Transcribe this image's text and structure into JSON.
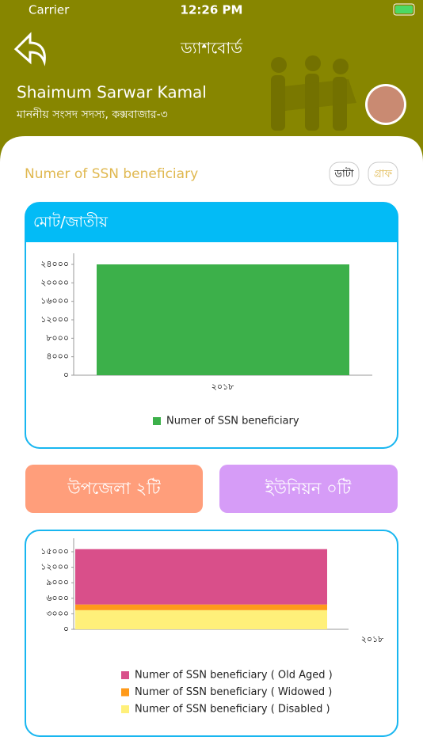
{
  "status_bar": {
    "carrier": "Carrier",
    "time": "12:26 PM"
  },
  "header": {
    "title": "ড্যাশবোর্ড",
    "name": "Shaimum Sarwar Kamal",
    "subtitle": "মাননীয় সংসদ সদস্য, কক্সবাজার-৩"
  },
  "section": {
    "title": "Numer of SSN beneficiary",
    "buttons": [
      "ডাটা",
      "গ্রাফ"
    ]
  },
  "stats": [
    "উপজেলা ২টি",
    "ইউনিয়ন ০টি"
  ],
  "chart_data": [
    {
      "type": "bar",
      "title": "মোট/জাতীয়",
      "categories": [
        "২০১৮"
      ],
      "series": [
        {
          "name": "Numer of SSN beneficiary",
          "color": "#3cb04a",
          "values": [
            24000
          ]
        }
      ],
      "ylim": [
        0,
        26400
      ],
      "yticks": [
        {
          "value": 0,
          "label": "০"
        },
        {
          "value": 4000,
          "label": "৪০০০"
        },
        {
          "value": 8000,
          "label": "৮০০০"
        },
        {
          "value": 12000,
          "label": "১২০০০"
        },
        {
          "value": 16000,
          "label": "১৬০০০"
        },
        {
          "value": 20000,
          "label": "২০০০০"
        },
        {
          "value": 24000,
          "label": "২৪০০০"
        }
      ],
      "legend": "bottom"
    },
    {
      "type": "stacked_bar",
      "categories": [
        "২০১৮"
      ],
      "series": [
        {
          "name": "Numer of SSN beneficiary ( Old Aged )",
          "color": "#d94f8a",
          "values": [
            10700
          ]
        },
        {
          "name": "Numer of SSN beneficiary ( Widowed )",
          "color": "#ff9a1a",
          "values": [
            1100
          ]
        },
        {
          "name": "Numer of SSN beneficiary ( Disabled )",
          "color": "#fff07a",
          "values": [
            3700
          ]
        }
      ],
      "ylim": [
        0,
        17600
      ],
      "yticks": [
        {
          "value": 0,
          "label": "০"
        },
        {
          "value": 3000,
          "label": "৩০০০"
        },
        {
          "value": 6000,
          "label": "৬০০০"
        },
        {
          "value": 9000,
          "label": "৯০০০"
        },
        {
          "value": 12000,
          "label": "১২০০০"
        },
        {
          "value": 15000,
          "label": "১৫০০০"
        }
      ],
      "legend": "bottom"
    }
  ]
}
